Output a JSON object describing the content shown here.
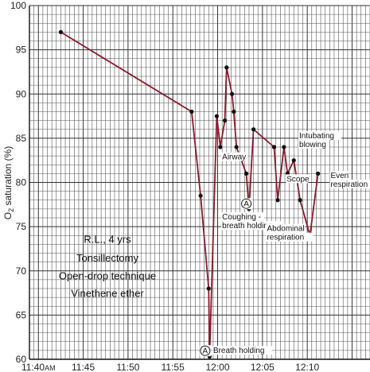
{
  "chart_data": {
    "type": "line",
    "ylabel_parts": [
      "O",
      "2",
      " saturation (%)"
    ],
    "ylim": [
      60,
      100
    ],
    "xlim": [
      -21,
      17
    ],
    "y_ticks": [
      60,
      65,
      70,
      75,
      80,
      85,
      90,
      95,
      100
    ],
    "x_ticks": [
      {
        "t": -20,
        "label": "11:40",
        "suffix": "AM"
      },
      {
        "t": -15,
        "label": "11:45"
      },
      {
        "t": -10,
        "label": "11:50"
      },
      {
        "t": -5,
        "label": "11:55"
      },
      {
        "t": 0,
        "label": "12:00"
      },
      {
        "t": 5,
        "label": "12:05"
      },
      {
        "t": 10,
        "label": "12:10"
      }
    ],
    "grid": true,
    "line_color": "#8b1a2b",
    "marker_color": "#111111",
    "series": [
      {
        "x": [
          -17.5,
          -2.9,
          -1.9,
          -1.0,
          -0.9,
          -0.1,
          0.3,
          0.8,
          1.0,
          1.6,
          1.8,
          2.1,
          3.2,
          3.5,
          4.0,
          6.3,
          6.7,
          7.4,
          7.8,
          8.5,
          9.2,
          10.3,
          11.2
        ],
        "values": [
          97,
          88,
          78.5,
          68,
          60.3,
          87.5,
          84,
          87,
          93,
          90,
          88,
          84,
          81,
          77,
          86,
          84,
          78,
          84,
          81,
          82.5,
          78,
          74,
          81
        ]
      }
    ],
    "info_box": [
      "R.L., 4 yrs",
      "Tonsillectomy",
      "Open-drop technique",
      "Vinethene ether"
    ],
    "annotations": [
      {
        "lines": [
          "Breath holding"
        ],
        "x": -0.5,
        "y": 60.7,
        "circle": "A"
      },
      {
        "lines": [
          "Airway"
        ],
        "x": 0.5,
        "y": 82.6
      },
      {
        "lines": [
          "Coughing -",
          "breath holding"
        ],
        "x": 0.5,
        "y": 75.8,
        "circle": "A",
        "circle_x": 3.2,
        "circle_y": 77.6
      },
      {
        "lines": [
          "Abdominal",
          "respiration"
        ],
        "x": 5.5,
        "y": 74.5
      },
      {
        "lines": [
          "Scope"
        ],
        "x": 7.7,
        "y": 80.1
      },
      {
        "lines": [
          "Intubating",
          "blowing"
        ],
        "x": 9.1,
        "y": 85.0
      },
      {
        "lines": [
          "Even",
          "respiration"
        ],
        "x": 12.6,
        "y": 80.5
      }
    ]
  }
}
